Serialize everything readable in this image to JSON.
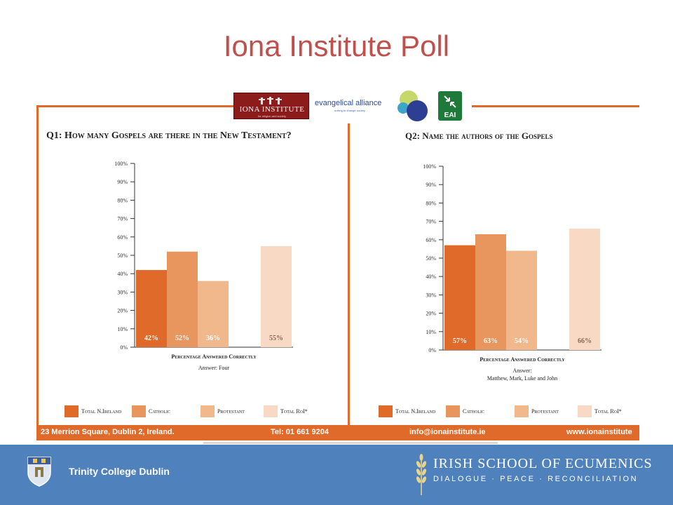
{
  "slide": {
    "title": "Iona Institute Poll"
  },
  "logos": {
    "iona": "IONA INSTITUTE",
    "iona_sub": "for religion and society",
    "ea": "evangelical alliance",
    "ea_sub": "uniting to change society",
    "eai": "EAI"
  },
  "colors": {
    "title": "#c0504d",
    "poll_frame": "#e06a2a",
    "total_ni": "#e06a2a",
    "catholic": "#e8955e",
    "protestant": "#f1b88c",
    "total_roi": "#f8d9c3",
    "footer": "#4f81bd"
  },
  "legend": [
    "Total N.Ireland",
    "Catholic",
    "Protestant",
    "Total RoI*"
  ],
  "chart_data": [
    {
      "type": "bar",
      "title": "Q1: How many Gospels are there in the New Testament?",
      "xlabel": "Percentage Answered Correctly",
      "note": "Answer: Four",
      "ylim": [
        0,
        100
      ],
      "yticks": [
        "0%",
        "10%",
        "20%",
        "30%",
        "40%",
        "50%",
        "60%",
        "70%",
        "80%",
        "90%",
        "100%"
      ],
      "categories": [
        "Total N.Ireland",
        "Catholic",
        "Protestant",
        "Total RoI*"
      ],
      "values": [
        42,
        52,
        36,
        55
      ],
      "labels": [
        "42%",
        "52%",
        "36%",
        "55%"
      ]
    },
    {
      "type": "bar",
      "title": "Q2: Name the authors of the Gospels",
      "xlabel": "Percentage Answered Correctly",
      "note": "Answer:",
      "note2": "Matthew, Mark, Luke and John",
      "ylim": [
        0,
        100
      ],
      "yticks": [
        "0%",
        "10%",
        "20%",
        "30%",
        "40%",
        "50%",
        "60%",
        "70%",
        "80%",
        "90%",
        "100%"
      ],
      "categories": [
        "Total N.Ireland",
        "Catholic",
        "Protestant",
        "Total RoI*"
      ],
      "values": [
        57,
        63,
        54,
        66
      ],
      "labels": [
        "57%",
        "63%",
        "54%",
        "66%"
      ]
    }
  ],
  "contact": {
    "address": "23 Merrion Square, Dublin 2, Ireland.",
    "phone": "Tel: 01 661 9204",
    "email": "info@ionainstitute.ie",
    "web": "www.ionainstitute"
  },
  "footer": {
    "left": "Trinity College Dublin",
    "right_title": "IRISH SCHOOL OF ECUMENICS",
    "right_sub": "DIALOGUE · PEACE · RECONCILIATION"
  }
}
